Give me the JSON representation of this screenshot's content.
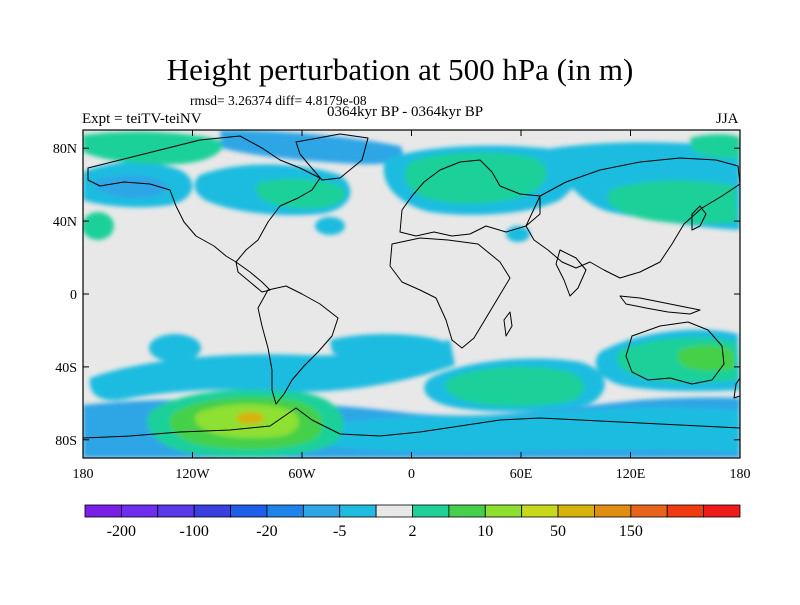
{
  "title": "Height perturbation at 500 hPa (in m)",
  "stats": "rmsd= 3.26374 diff= 4.8179e-08",
  "expt": "Expt = teiTV-teiNV",
  "period": "0364kyr BP - 0364kyr BP",
  "season": "JJA",
  "lat_ticks": [
    {
      "value": 80,
      "label": "80N"
    },
    {
      "value": 40,
      "label": "40N"
    },
    {
      "value": 0,
      "label": "0"
    },
    {
      "value": -40,
      "label": "40S"
    },
    {
      "value": -80,
      "label": "80S"
    }
  ],
  "lon_ticks": [
    {
      "value": -180,
      "label": "180"
    },
    {
      "value": -120,
      "label": "120W"
    },
    {
      "value": -60,
      "label": "60W"
    },
    {
      "value": 0,
      "label": "0"
    },
    {
      "value": 60,
      "label": "60E"
    },
    {
      "value": 120,
      "label": "120E"
    },
    {
      "value": 180,
      "label": "180"
    }
  ],
  "colorbar": {
    "colors": [
      "#7a1fe6",
      "#6e2ef0",
      "#5a39e8",
      "#3a3fe0",
      "#1e5ee8",
      "#1e84ea",
      "#2ea6e6",
      "#1fbce0",
      "#e8e8e8",
      "#1fd09a",
      "#44d04a",
      "#8ee030",
      "#c8d81a",
      "#d6b40c",
      "#e08e12",
      "#e8641a",
      "#f03a10",
      "#f01a1a"
    ],
    "labels": [
      {
        "boundary": 1,
        "text": "-200"
      },
      {
        "boundary": 3,
        "text": "-100"
      },
      {
        "boundary": 5,
        "text": "-20"
      },
      {
        "boundary": 7,
        "text": "-5"
      },
      {
        "boundary": 9,
        "text": "2"
      },
      {
        "boundary": 11,
        "text": "10"
      },
      {
        "boundary": 13,
        "text": "50"
      },
      {
        "boundary": 15,
        "text": "150"
      }
    ]
  },
  "field_colors": {
    "background": "#e8e8e8",
    "light_blue": "#1fbce0",
    "mid_blue": "#2ea6e6",
    "teal_green": "#1fd09a",
    "green": "#44d04a",
    "yellow_green": "#8ee030",
    "olive": "#c8d81a",
    "orange": "#d6b40c",
    "coast": "#000000"
  }
}
